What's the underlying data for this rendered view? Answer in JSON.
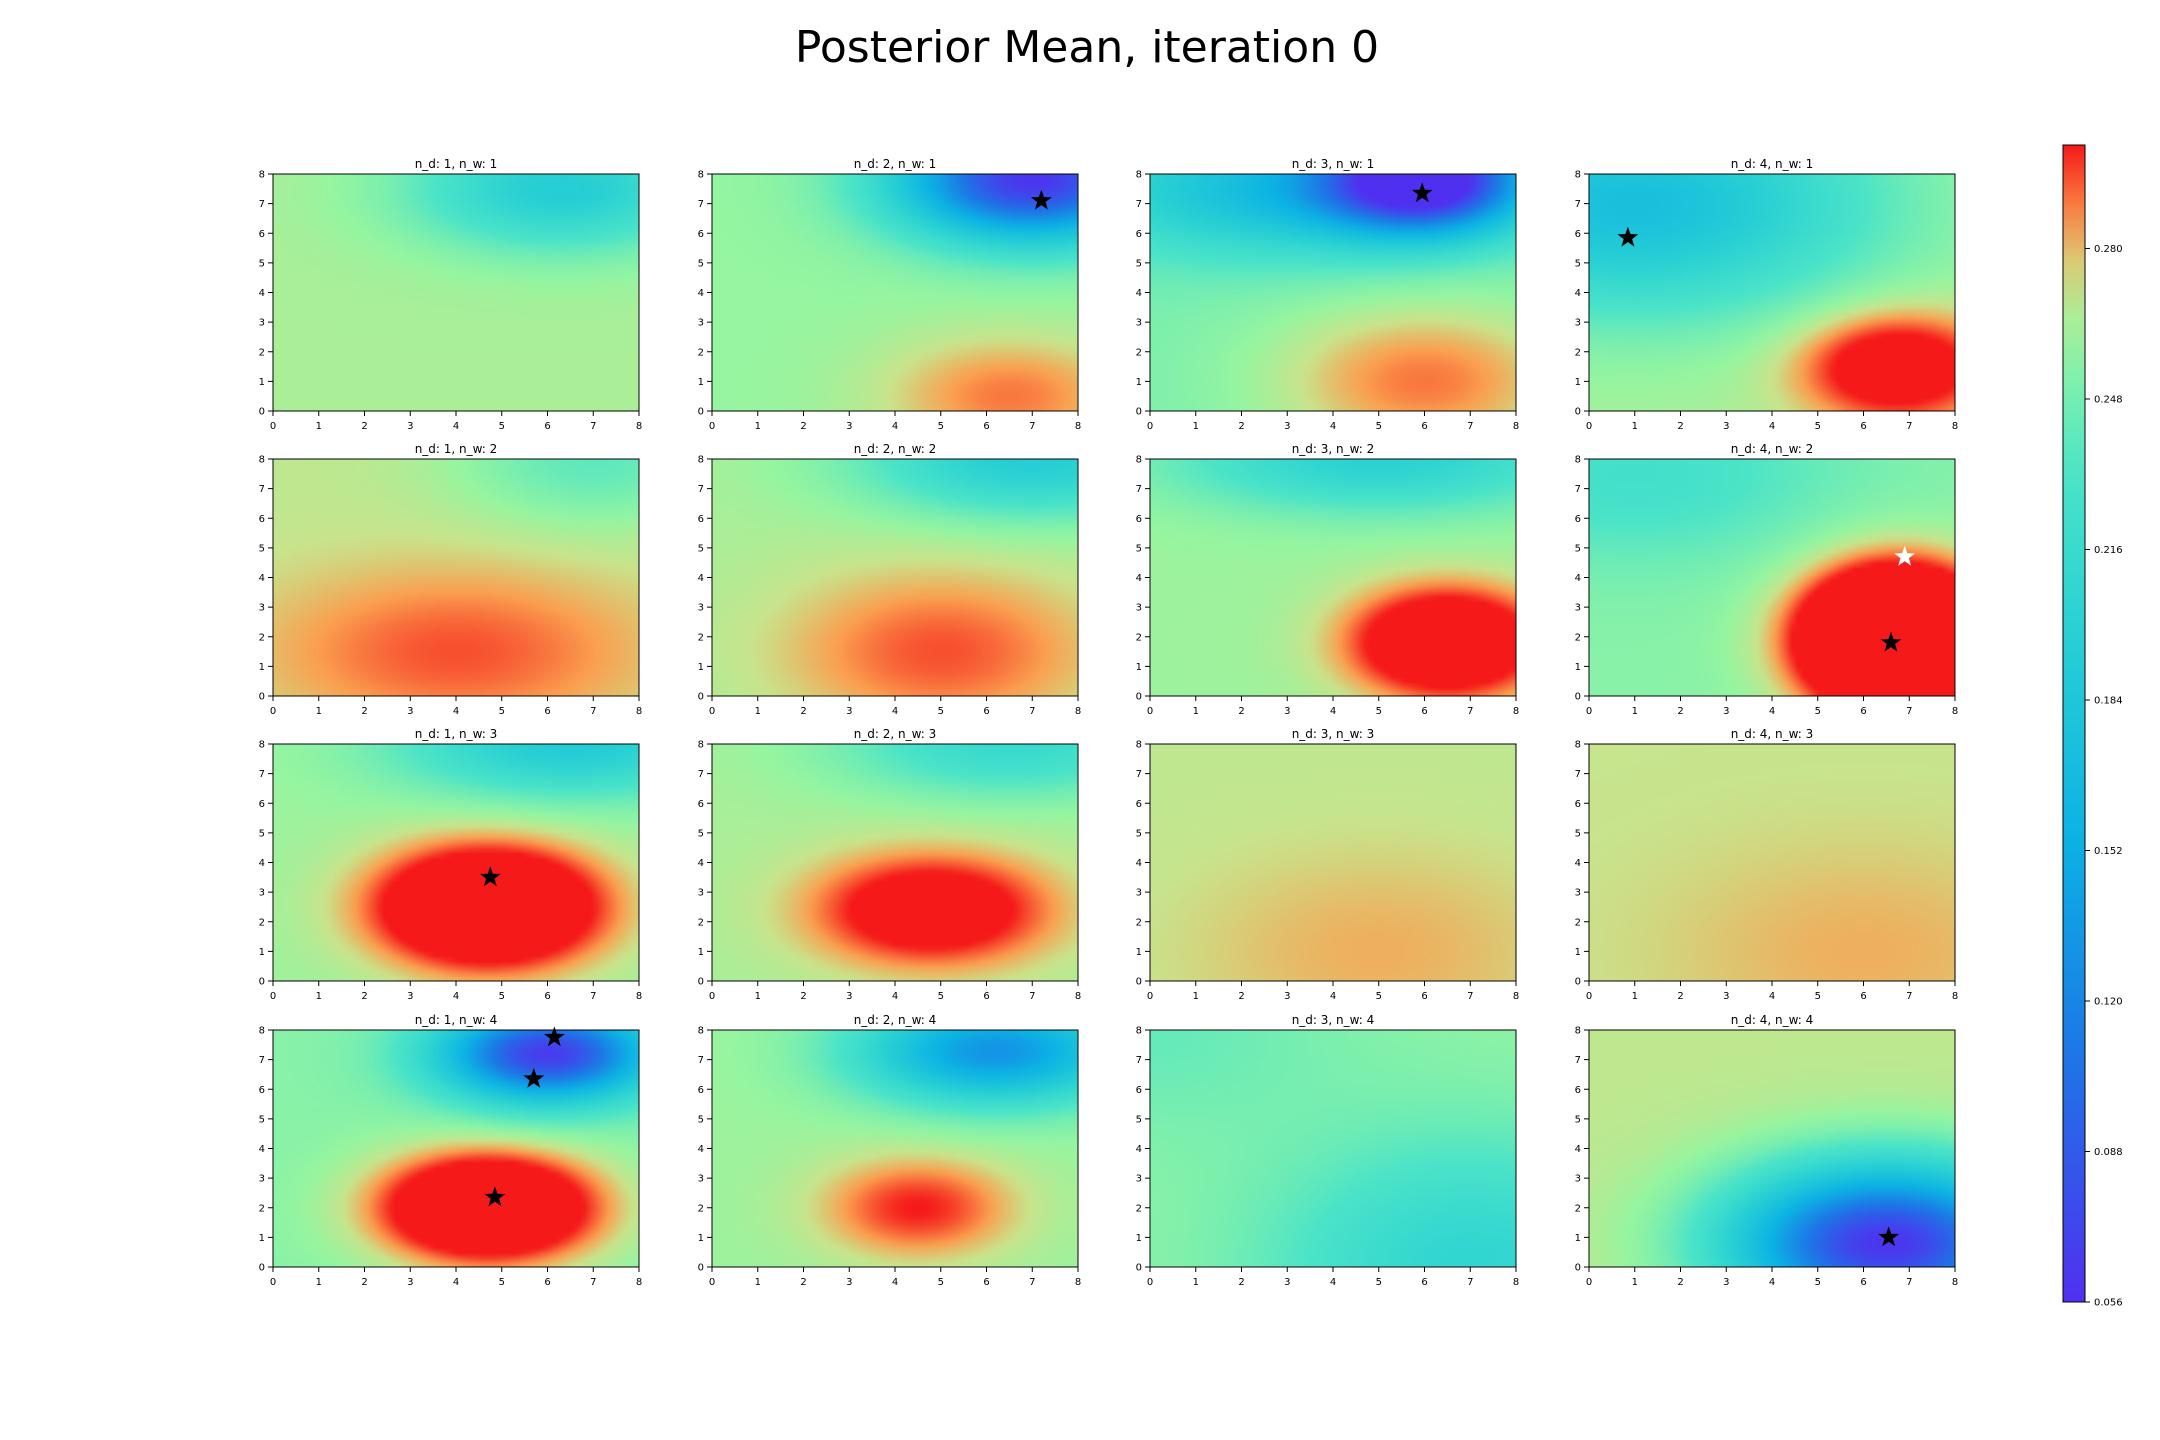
{
  "figure": {
    "title": "Posterior Mean, iteration 0"
  },
  "colorbar": {
    "ticks": [
      "0.056",
      "0.088",
      "0.120",
      "0.152",
      "0.184",
      "0.216",
      "0.248",
      "0.280"
    ]
  },
  "chart_data": {
    "type": "heatmap",
    "title": "Posterior Mean, iteration 0",
    "colormap": "rainbow",
    "value_range": [
      0.056,
      0.302
    ],
    "grid": false,
    "colorbar_placement": "right",
    "layout": "4x4",
    "panels": [
      {
        "title": "n_d: 1, n_w: 1",
        "xlim": [
          0,
          8
        ],
        "ylim": [
          0,
          8
        ],
        "xticks": [
          0,
          1,
          2,
          3,
          4,
          5,
          6,
          7,
          8
        ],
        "yticks": [
          0,
          1,
          2,
          3,
          4,
          5,
          6,
          7,
          8
        ],
        "base": 0.265,
        "features": [
          {
            "x": 6.3,
            "y": 7.5,
            "amp": -0.07,
            "sx": 2.2,
            "sy": 1.4
          }
        ],
        "stars": []
      },
      {
        "title": "n_d: 2, n_w: 1",
        "xlim": [
          0,
          8
        ],
        "ylim": [
          0,
          8
        ],
        "xticks": [
          0,
          1,
          2,
          3,
          4,
          5,
          6,
          7,
          8
        ],
        "yticks": [
          0,
          1,
          2,
          3,
          4,
          5,
          6,
          7,
          8
        ],
        "base": 0.26,
        "features": [
          {
            "x": 7.0,
            "y": 7.8,
            "amp": -0.2,
            "sx": 2.0,
            "sy": 1.4
          },
          {
            "x": 6.5,
            "y": 0.5,
            "amp": 0.03,
            "sx": 2.0,
            "sy": 1.5
          }
        ],
        "stars": [
          {
            "x": 7.2,
            "y": 7.1,
            "color": "#000000"
          }
        ]
      },
      {
        "title": "n_d: 3, n_w: 1",
        "xlim": [
          0,
          8
        ],
        "ylim": [
          0,
          8
        ],
        "xticks": [
          0,
          1,
          2,
          3,
          4,
          5,
          6,
          7,
          8
        ],
        "yticks": [
          0,
          1,
          2,
          3,
          4,
          5,
          6,
          7,
          8
        ],
        "base": 0.25,
        "features": [
          {
            "x": 6.0,
            "y": 7.8,
            "amp": -0.2,
            "sx": 1.5,
            "sy": 1.2
          },
          {
            "x": 3.0,
            "y": 7.5,
            "amp": -0.08,
            "sx": 3.0,
            "sy": 1.5
          },
          {
            "x": 6.0,
            "y": 1.0,
            "amp": 0.04,
            "sx": 2.5,
            "sy": 2.0
          }
        ],
        "stars": [
          {
            "x": 5.95,
            "y": 7.35,
            "color": "#000000"
          }
        ]
      },
      {
        "title": "n_d: 4, n_w: 1",
        "xlim": [
          0,
          8
        ],
        "ylim": [
          0,
          8
        ],
        "xticks": [
          0,
          1,
          2,
          3,
          4,
          5,
          6,
          7,
          8
        ],
        "yticks": [
          0,
          1,
          2,
          3,
          4,
          5,
          6,
          7,
          8
        ],
        "base": 0.265,
        "features": [
          {
            "x": 1.0,
            "y": 7.0,
            "amp": -0.09,
            "sx": 3.5,
            "sy": 2.5
          },
          {
            "x": 6.7,
            "y": 1.5,
            "amp": 0.06,
            "sx": 1.5,
            "sy": 1.3
          }
        ],
        "stars": [
          {
            "x": 0.85,
            "y": 5.85,
            "color": "#000000"
          }
        ]
      },
      {
        "title": "n_d: 1, n_w: 2",
        "xlim": [
          0,
          8
        ],
        "ylim": [
          0,
          8
        ],
        "xticks": [
          0,
          1,
          2,
          3,
          4,
          5,
          6,
          7,
          8
        ],
        "yticks": [
          0,
          1,
          2,
          3,
          4,
          5,
          6,
          7,
          8
        ],
        "base": 0.27,
        "features": [
          {
            "x": 4.0,
            "y": 1.5,
            "amp": 0.025,
            "sx": 3.0,
            "sy": 2.0
          },
          {
            "x": 7.0,
            "y": 8.0,
            "amp": -0.03,
            "sx": 2.0,
            "sy": 1.5
          }
        ],
        "stars": []
      },
      {
        "title": "n_d: 2, n_w: 2",
        "xlim": [
          0,
          8
        ],
        "ylim": [
          0,
          8
        ],
        "xticks": [
          0,
          1,
          2,
          3,
          4,
          5,
          6,
          7,
          8
        ],
        "yticks": [
          0,
          1,
          2,
          3,
          4,
          5,
          6,
          7,
          8
        ],
        "base": 0.265,
        "features": [
          {
            "x": 7.0,
            "y": 8.0,
            "amp": -0.07,
            "sx": 2.5,
            "sy": 1.3
          },
          {
            "x": 5.0,
            "y": 1.5,
            "amp": 0.03,
            "sx": 2.5,
            "sy": 2.0
          }
        ],
        "stars": []
      },
      {
        "title": "n_d: 3, n_w: 2",
        "xlim": [
          0,
          8
        ],
        "ylim": [
          0,
          8
        ],
        "xticks": [
          0,
          1,
          2,
          3,
          4,
          5,
          6,
          7,
          8
        ],
        "yticks": [
          0,
          1,
          2,
          3,
          4,
          5,
          6,
          7,
          8
        ],
        "base": 0.262,
        "features": [
          {
            "x": 6.5,
            "y": 1.8,
            "amp": 0.08,
            "sx": 1.5,
            "sy": 1.3
          },
          {
            "x": 5.0,
            "y": 8.0,
            "amp": -0.06,
            "sx": 3.0,
            "sy": 1.2
          }
        ],
        "stars": []
      },
      {
        "title": "n_d: 4, n_w: 2",
        "xlim": [
          0,
          8
        ],
        "ylim": [
          0,
          8
        ],
        "xticks": [
          0,
          1,
          2,
          3,
          4,
          5,
          6,
          7,
          8
        ],
        "yticks": [
          0,
          1,
          2,
          3,
          4,
          5,
          6,
          7,
          8
        ],
        "base": 0.255,
        "features": [
          {
            "x": 6.7,
            "y": 1.9,
            "amp": 0.16,
            "sx": 1.45,
            "sy": 1.7
          },
          {
            "x": 1.0,
            "y": 7.5,
            "amp": -0.03,
            "sx": 3.0,
            "sy": 2.0
          }
        ],
        "stars": [
          {
            "x": 6.6,
            "y": 1.8,
            "color": "#000000"
          },
          {
            "x": 6.9,
            "y": 4.7,
            "color": "#ffffff"
          }
        ]
      },
      {
        "title": "n_d: 1, n_w: 3",
        "xlim": [
          0,
          8
        ],
        "ylim": [
          0,
          8
        ],
        "xticks": [
          0,
          1,
          2,
          3,
          4,
          5,
          6,
          7,
          8
        ],
        "yticks": [
          0,
          1,
          2,
          3,
          4,
          5,
          6,
          7,
          8
        ],
        "base": 0.262,
        "features": [
          {
            "x": 4.7,
            "y": 2.5,
            "amp": 0.1,
            "sx": 1.7,
            "sy": 1.4
          },
          {
            "x": 6.5,
            "y": 8.0,
            "amp": -0.07,
            "sx": 2.5,
            "sy": 1.2
          }
        ],
        "stars": [
          {
            "x": 4.75,
            "y": 3.5,
            "color": "#000000"
          }
        ]
      },
      {
        "title": "n_d: 2, n_w: 3",
        "xlim": [
          0,
          8
        ],
        "ylim": [
          0,
          8
        ],
        "xticks": [
          0,
          1,
          2,
          3,
          4,
          5,
          6,
          7,
          8
        ],
        "yticks": [
          0,
          1,
          2,
          3,
          4,
          5,
          6,
          7,
          8
        ],
        "base": 0.265,
        "features": [
          {
            "x": 4.8,
            "y": 2.4,
            "amp": 0.06,
            "sx": 1.8,
            "sy": 1.3
          },
          {
            "x": 6.5,
            "y": 8.0,
            "amp": -0.05,
            "sx": 2.5,
            "sy": 1.2
          }
        ],
        "stars": []
      },
      {
        "title": "n_d: 3, n_w: 3",
        "xlim": [
          0,
          8
        ],
        "ylim": [
          0,
          8
        ],
        "xticks": [
          0,
          1,
          2,
          3,
          4,
          5,
          6,
          7,
          8
        ],
        "yticks": [
          0,
          1,
          2,
          3,
          4,
          5,
          6,
          7,
          8
        ],
        "base": 0.27,
        "features": [
          {
            "x": 5.0,
            "y": 1.0,
            "amp": 0.012,
            "sx": 3.0,
            "sy": 2.5
          }
        ],
        "stars": []
      },
      {
        "title": "n_d: 4, n_w: 3",
        "xlim": [
          0,
          8
        ],
        "ylim": [
          0,
          8
        ],
        "xticks": [
          0,
          1,
          2,
          3,
          4,
          5,
          6,
          7,
          8
        ],
        "yticks": [
          0,
          1,
          2,
          3,
          4,
          5,
          6,
          7,
          8
        ],
        "base": 0.272,
        "features": [
          {
            "x": 6.0,
            "y": 1.0,
            "amp": 0.01,
            "sx": 3.0,
            "sy": 2.5
          }
        ],
        "stars": []
      },
      {
        "title": "n_d: 1, n_w: 4",
        "xlim": [
          0,
          8
        ],
        "ylim": [
          0,
          8
        ],
        "xticks": [
          0,
          1,
          2,
          3,
          4,
          5,
          6,
          7,
          8
        ],
        "yticks": [
          0,
          1,
          2,
          3,
          4,
          5,
          6,
          7,
          8
        ],
        "base": 0.255,
        "features": [
          {
            "x": 6.0,
            "y": 7.2,
            "amp": -0.19,
            "sx": 1.6,
            "sy": 1.1
          },
          {
            "x": 4.7,
            "y": 2.0,
            "amp": 0.1,
            "sx": 1.7,
            "sy": 1.3
          }
        ],
        "stars": [
          {
            "x": 6.15,
            "y": 7.75,
            "color": "#000000"
          },
          {
            "x": 5.7,
            "y": 6.35,
            "color": "#000000"
          },
          {
            "x": 4.85,
            "y": 2.35,
            "color": "#000000"
          }
        ]
      },
      {
        "title": "n_d: 2, n_w: 4",
        "xlim": [
          0,
          8
        ],
        "ylim": [
          0,
          8
        ],
        "xticks": [
          0,
          1,
          2,
          3,
          4,
          5,
          6,
          7,
          8
        ],
        "yticks": [
          0,
          1,
          2,
          3,
          4,
          5,
          6,
          7,
          8
        ],
        "base": 0.262,
        "features": [
          {
            "x": 6.2,
            "y": 7.3,
            "amp": -0.13,
            "sx": 2.0,
            "sy": 1.2
          },
          {
            "x": 4.5,
            "y": 2.0,
            "amp": 0.04,
            "sx": 1.5,
            "sy": 1.2
          }
        ],
        "stars": []
      },
      {
        "title": "n_d: 3, n_w: 4",
        "xlim": [
          0,
          8
        ],
        "ylim": [
          0,
          8
        ],
        "xticks": [
          0,
          1,
          2,
          3,
          4,
          5,
          6,
          7,
          8
        ],
        "yticks": [
          0,
          1,
          2,
          3,
          4,
          5,
          6,
          7,
          8
        ],
        "base": 0.258,
        "features": [
          {
            "x": 7.0,
            "y": 0.0,
            "amp": -0.05,
            "sx": 3.0,
            "sy": 3.0
          },
          {
            "x": 0.0,
            "y": 8.0,
            "amp": -0.015,
            "sx": 3.0,
            "sy": 2.5
          }
        ],
        "stars": []
      },
      {
        "title": "n_d: 4, n_w: 4",
        "xlim": [
          0,
          8
        ],
        "ylim": [
          0,
          8
        ],
        "xticks": [
          0,
          1,
          2,
          3,
          4,
          5,
          6,
          7,
          8
        ],
        "yticks": [
          0,
          1,
          2,
          3,
          4,
          5,
          6,
          7,
          8
        ],
        "base": 0.27,
        "features": [
          {
            "x": 6.5,
            "y": 0.8,
            "amp": -0.21,
            "sx": 2.3,
            "sy": 1.8
          }
        ],
        "stars": [
          {
            "x": 6.55,
            "y": 1.0,
            "color": "#000000"
          }
        ]
      }
    ]
  }
}
